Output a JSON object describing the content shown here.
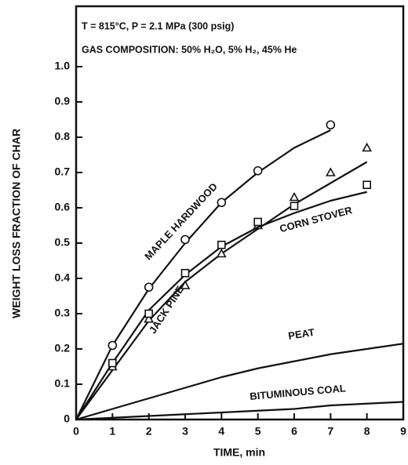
{
  "chart_data": {
    "type": "line",
    "annotations": [
      "T = 815°C, P = 2.1 MPa (300 psig)",
      "GAS COMPOSITION: 50% H₂O, 5% H₂, 45% He"
    ],
    "xlabel": "TIME, min",
    "ylabel": "WEIGHT LOSS FRACTION OF CHAR",
    "xlim": [
      0,
      9
    ],
    "ylim": [
      0,
      1.0
    ],
    "xticks": [
      0,
      1,
      2,
      3,
      4,
      5,
      6,
      7,
      8,
      9
    ],
    "yticks": [
      0,
      0.1,
      0.2,
      0.3,
      0.4,
      0.5,
      0.6,
      0.7,
      0.8,
      0.9,
      {
        "value": 1,
        "label": "1.0"
      }
    ],
    "color": "#111111",
    "series": [
      {
        "name": "MAPLE HARDWOOD",
        "marker": "circle",
        "x": [
          1,
          2,
          3,
          4,
          5,
          7
        ],
        "values": [
          0.21,
          0.375,
          0.51,
          0.615,
          0.705,
          0.835
        ],
        "curve_x": [
          0,
          1,
          2,
          3,
          4,
          5,
          6,
          7
        ],
        "curve_values": [
          0,
          0.21,
          0.37,
          0.5,
          0.615,
          0.7,
          0.77,
          0.82
        ]
      },
      {
        "name": "JACK PINE",
        "marker": "triangle",
        "x": [
          1,
          2,
          3,
          4,
          5,
          6,
          7,
          8
        ],
        "values": [
          0.15,
          0.285,
          0.38,
          0.47,
          0.55,
          0.63,
          0.7,
          0.77
        ],
        "curve_x": [
          0,
          1,
          2,
          3,
          4,
          5,
          6,
          7,
          8
        ],
        "curve_values": [
          0,
          0.14,
          0.28,
          0.39,
          0.47,
          0.54,
          0.61,
          0.67,
          0.73
        ]
      },
      {
        "name": "CORN STOVER",
        "marker": "square",
        "x": [
          1,
          2,
          3,
          4,
          5,
          6,
          8
        ],
        "values": [
          0.16,
          0.3,
          0.415,
          0.495,
          0.56,
          0.605,
          0.665
        ],
        "curve_x": [
          0,
          1,
          2,
          3,
          4,
          5,
          6,
          7,
          8
        ],
        "curve_values": [
          0,
          0.16,
          0.31,
          0.41,
          0.49,
          0.545,
          0.585,
          0.62,
          0.645
        ]
      },
      {
        "name": "PEAT",
        "curve_x": [
          0,
          1,
          2,
          3,
          4,
          5,
          6,
          7,
          8,
          9
        ],
        "curve_values": [
          0,
          0.03,
          0.06,
          0.09,
          0.12,
          0.145,
          0.165,
          0.185,
          0.2,
          0.215
        ]
      },
      {
        "name": "BITUMINOUS COAL",
        "curve_x": [
          0,
          1,
          2,
          3,
          4,
          5,
          6,
          7,
          8,
          9
        ],
        "curve_values": [
          0,
          0.005,
          0.01,
          0.015,
          0.02,
          0.025,
          0.03,
          0.04,
          0.045,
          0.05
        ]
      }
    ]
  }
}
